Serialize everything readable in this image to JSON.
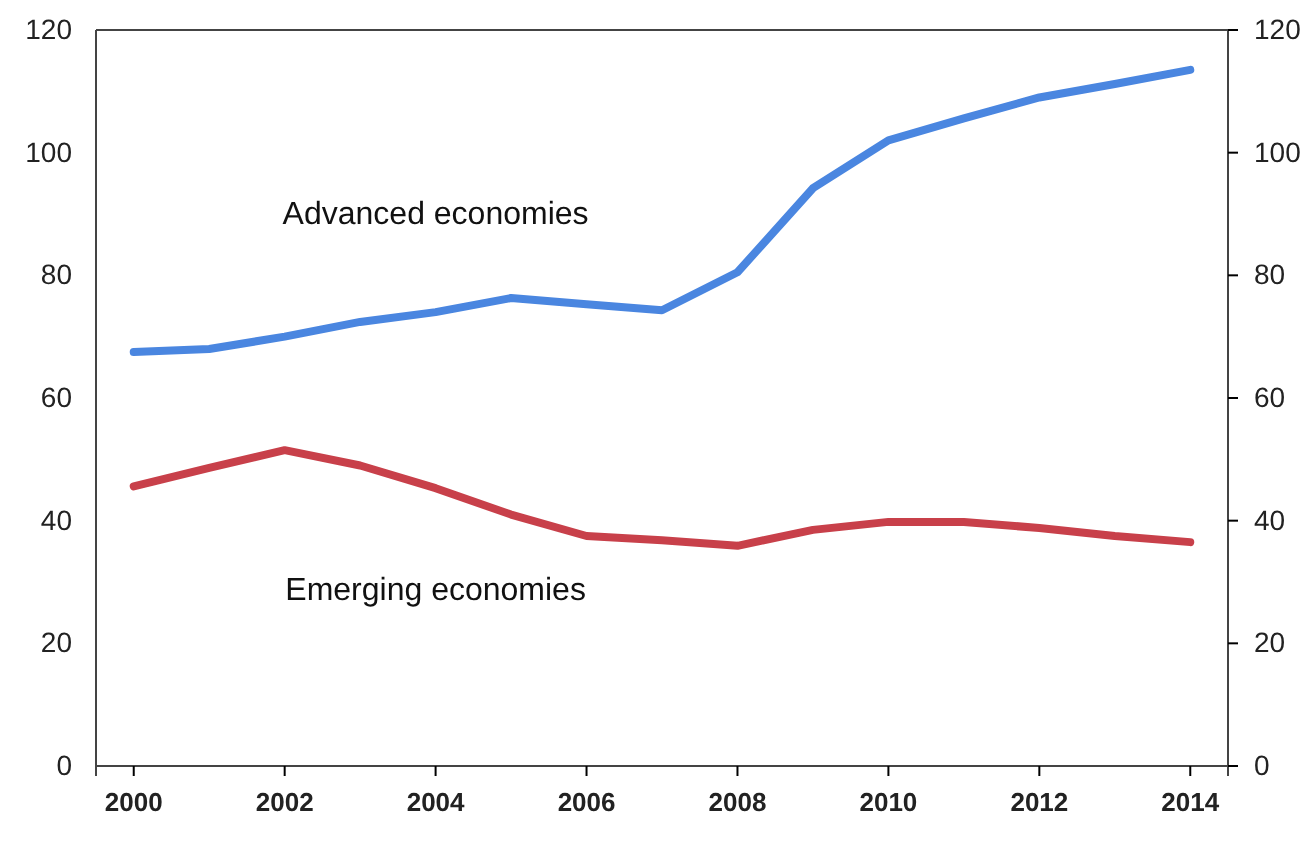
{
  "chart_data": {
    "type": "line",
    "x": [
      2000,
      2001,
      2002,
      2003,
      2004,
      2005,
      2006,
      2007,
      2008,
      2009,
      2010,
      2011,
      2012,
      2013,
      2014
    ],
    "series": [
      {
        "name": "Advanced economies",
        "color": "#4a86e0",
        "values": [
          67.5,
          68,
          70,
          72.4,
          74,
          76.3,
          75.3,
          74.3,
          80.5,
          94.2,
          102,
          105.6,
          109,
          111.2,
          113.5
        ]
      },
      {
        "name": "Emerging economies",
        "color": "#c8404a",
        "values": [
          45.6,
          48.6,
          51.5,
          49,
          45.3,
          41,
          37.5,
          36.8,
          35.9,
          38.5,
          39.8,
          39.8,
          38.8,
          37.5,
          36.5
        ]
      }
    ],
    "xlim": [
      1999.5,
      2014.5
    ],
    "xticks": [
      2000,
      2002,
      2004,
      2006,
      2008,
      2010,
      2012,
      2014
    ],
    "ylim": [
      0,
      120
    ],
    "yticks": [
      0,
      20,
      40,
      60,
      80,
      100,
      120
    ],
    "y2lim": [
      0,
      120
    ],
    "y2ticks": [
      0,
      20,
      40,
      60,
      80,
      100,
      120
    ],
    "grid": false,
    "legend": false,
    "marker": "none",
    "line_style": "solid"
  }
}
